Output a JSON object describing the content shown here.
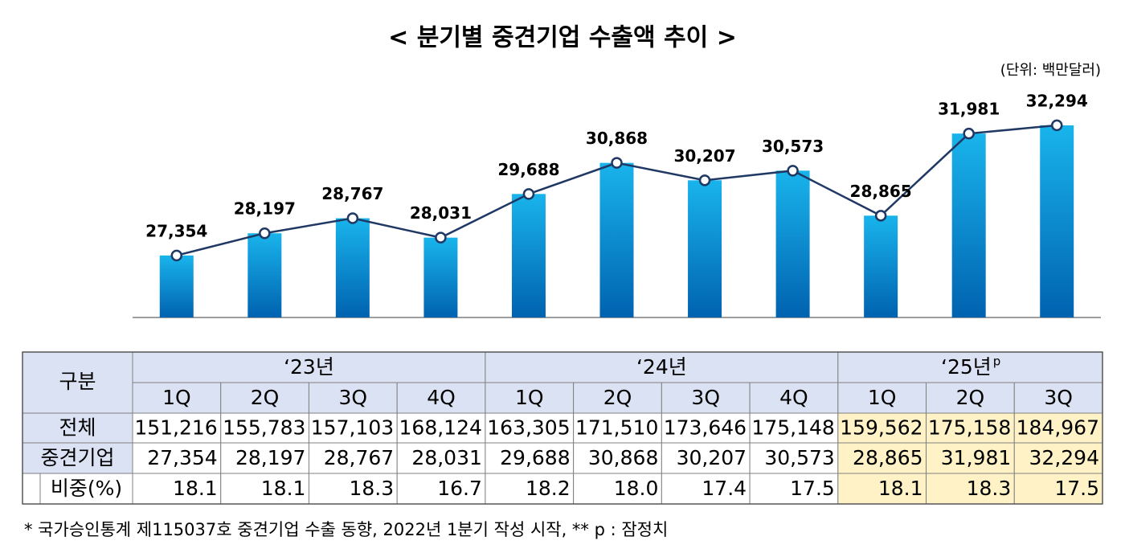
{
  "chart_data": {
    "type": "bar",
    "title": "< 분기별 중견기업 수출액 추이 >",
    "unit_note": "(단위: 백만달러)",
    "values": [
      27354,
      28197,
      28767,
      28031,
      29688,
      30868,
      30207,
      30573,
      28865,
      31981,
      32294
    ],
    "value_labels": [
      "27,354",
      "28,197",
      "28,767",
      "28,031",
      "29,688",
      "30,868",
      "30,207",
      "30,573",
      "28,865",
      "31,981",
      "32,294"
    ],
    "color": "#0a8fd6",
    "line_color": "#1f3864",
    "ylim": [
      25000,
      34000
    ]
  },
  "table": {
    "corner": "구분",
    "groups": [
      {
        "label": "‘23년",
        "quarters": [
          "1Q",
          "2Q",
          "3Q",
          "4Q"
        ]
      },
      {
        "label": "‘24년",
        "quarters": [
          "1Q",
          "2Q",
          "3Q",
          "4Q"
        ]
      },
      {
        "label": "‘25년",
        "superscript": "p",
        "quarters": [
          "1Q",
          "2Q",
          "3Q"
        ],
        "highlight": true
      }
    ],
    "rows": [
      {
        "label": "전체",
        "cells": [
          "151,216",
          "155,783",
          "157,103",
          "168,124",
          "163,305",
          "171,510",
          "173,646",
          "175,148",
          "159,562",
          "175,158",
          "184,967"
        ]
      },
      {
        "label": "중견기업",
        "cells": [
          "27,354",
          "28,197",
          "28,767",
          "28,031",
          "29,688",
          "30,868",
          "30,207",
          "30,573",
          "28,865",
          "31,981",
          "32,294"
        ]
      },
      {
        "label": "비중(%)",
        "cells": [
          "18.1",
          "18.1",
          "18.3",
          "16.7",
          "18.2",
          "18.0",
          "17.4",
          "17.5",
          "18.1",
          "18.3",
          "17.5"
        ]
      }
    ]
  },
  "footnote": "* 국가승인통계 제115037호 중견기업 수출 동향, 2022년 1분기 작성 시작, ** p : 잠정치"
}
